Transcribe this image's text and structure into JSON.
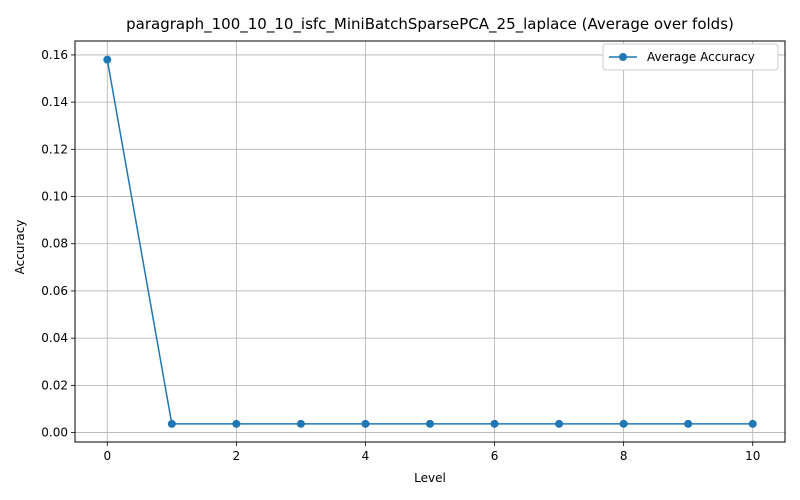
{
  "chart_data": {
    "type": "line",
    "title": "paragraph_100_10_10_isfc_MiniBatchSparsePCA_25_laplace (Average over folds)",
    "xlabel": "Level",
    "ylabel": "Accuracy",
    "x": [
      0,
      1,
      2,
      3,
      4,
      5,
      6,
      7,
      8,
      9,
      10
    ],
    "series": [
      {
        "name": "Average Accuracy",
        "values": [
          0.158,
          0.0037,
          0.0037,
          0.0037,
          0.0037,
          0.0037,
          0.0037,
          0.0037,
          0.0037,
          0.0037,
          0.0037
        ],
        "color": "#1f77b4",
        "marker": "circle"
      }
    ],
    "xlim": [
      -0.5,
      10.5
    ],
    "ylim": [
      -0.004,
      0.1659
    ],
    "xticks": [
      0,
      2,
      4,
      6,
      8,
      10
    ],
    "xtick_labels": [
      "0",
      "2",
      "4",
      "6",
      "8",
      "10"
    ],
    "yticks": [
      0.0,
      0.02,
      0.04,
      0.06,
      0.08,
      0.1,
      0.12,
      0.14,
      0.16
    ],
    "ytick_labels": [
      "0.00",
      "0.02",
      "0.04",
      "0.06",
      "0.08",
      "0.10",
      "0.12",
      "0.14",
      "0.16"
    ],
    "grid": true,
    "legend_position": "top-right"
  }
}
